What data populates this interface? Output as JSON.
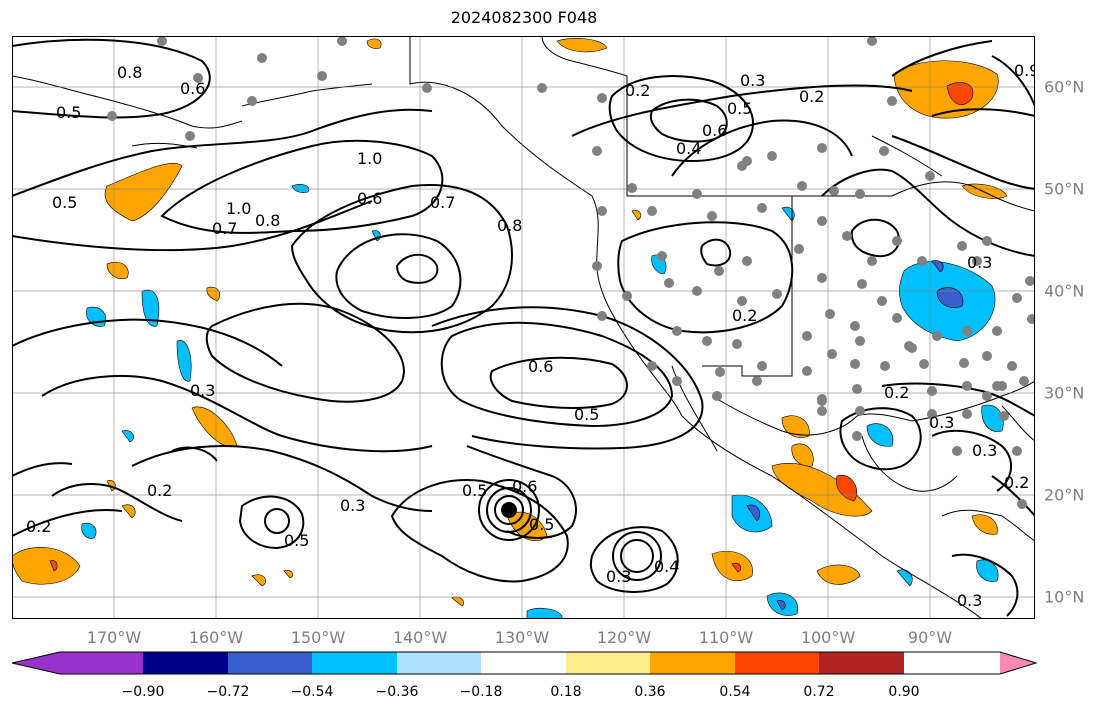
{
  "title": "2024082300 F048",
  "lon_labels": [
    "170°W",
    "160°W",
    "150°W",
    "140°W",
    "130°W",
    "120°W",
    "110°W",
    "100°W",
    "90°W"
  ],
  "lat_labels": [
    "60°N",
    "50°N",
    "40°N",
    "30°N",
    "20°N",
    "10°N"
  ],
  "colorbar": {
    "tick_labels": [
      "−0.90",
      "−0.72",
      "−0.54",
      "−0.36",
      "−0.18",
      "0.18",
      "0.36",
      "0.54",
      "0.72",
      "0.90"
    ],
    "colors": [
      "#9932cc",
      "#00008b",
      "#3a5fcd",
      "#00bfff",
      "#b0e2ff",
      "#ffffff",
      "#ffec8b",
      "#ffa500",
      "#ff4500",
      "#b22222",
      "#ff89b4"
    ]
  },
  "contour_labels": [
    "0.8",
    "0.6",
    "0.5",
    "0.5",
    "1.0",
    "0.6",
    "1.0",
    "0.7",
    "0.8",
    "0.7",
    "0.8",
    "0.6",
    "0.5",
    "0.3",
    "0.2",
    "0.2",
    "0.3",
    "0.5",
    "0.5",
    "0.6",
    "0.5",
    "0.3",
    "0.4",
    "0.3",
    "0.2",
    "0.6",
    "0.5",
    "0.2",
    "0.4",
    "0.2",
    "0.3",
    "0.3",
    "0.3",
    "0.2",
    "0.2",
    "0.3",
    "0.9"
  ],
  "colors": {
    "land_outline": "#000000",
    "grid": "#808080",
    "station_dot": "#808080",
    "contour": "#000000"
  }
}
